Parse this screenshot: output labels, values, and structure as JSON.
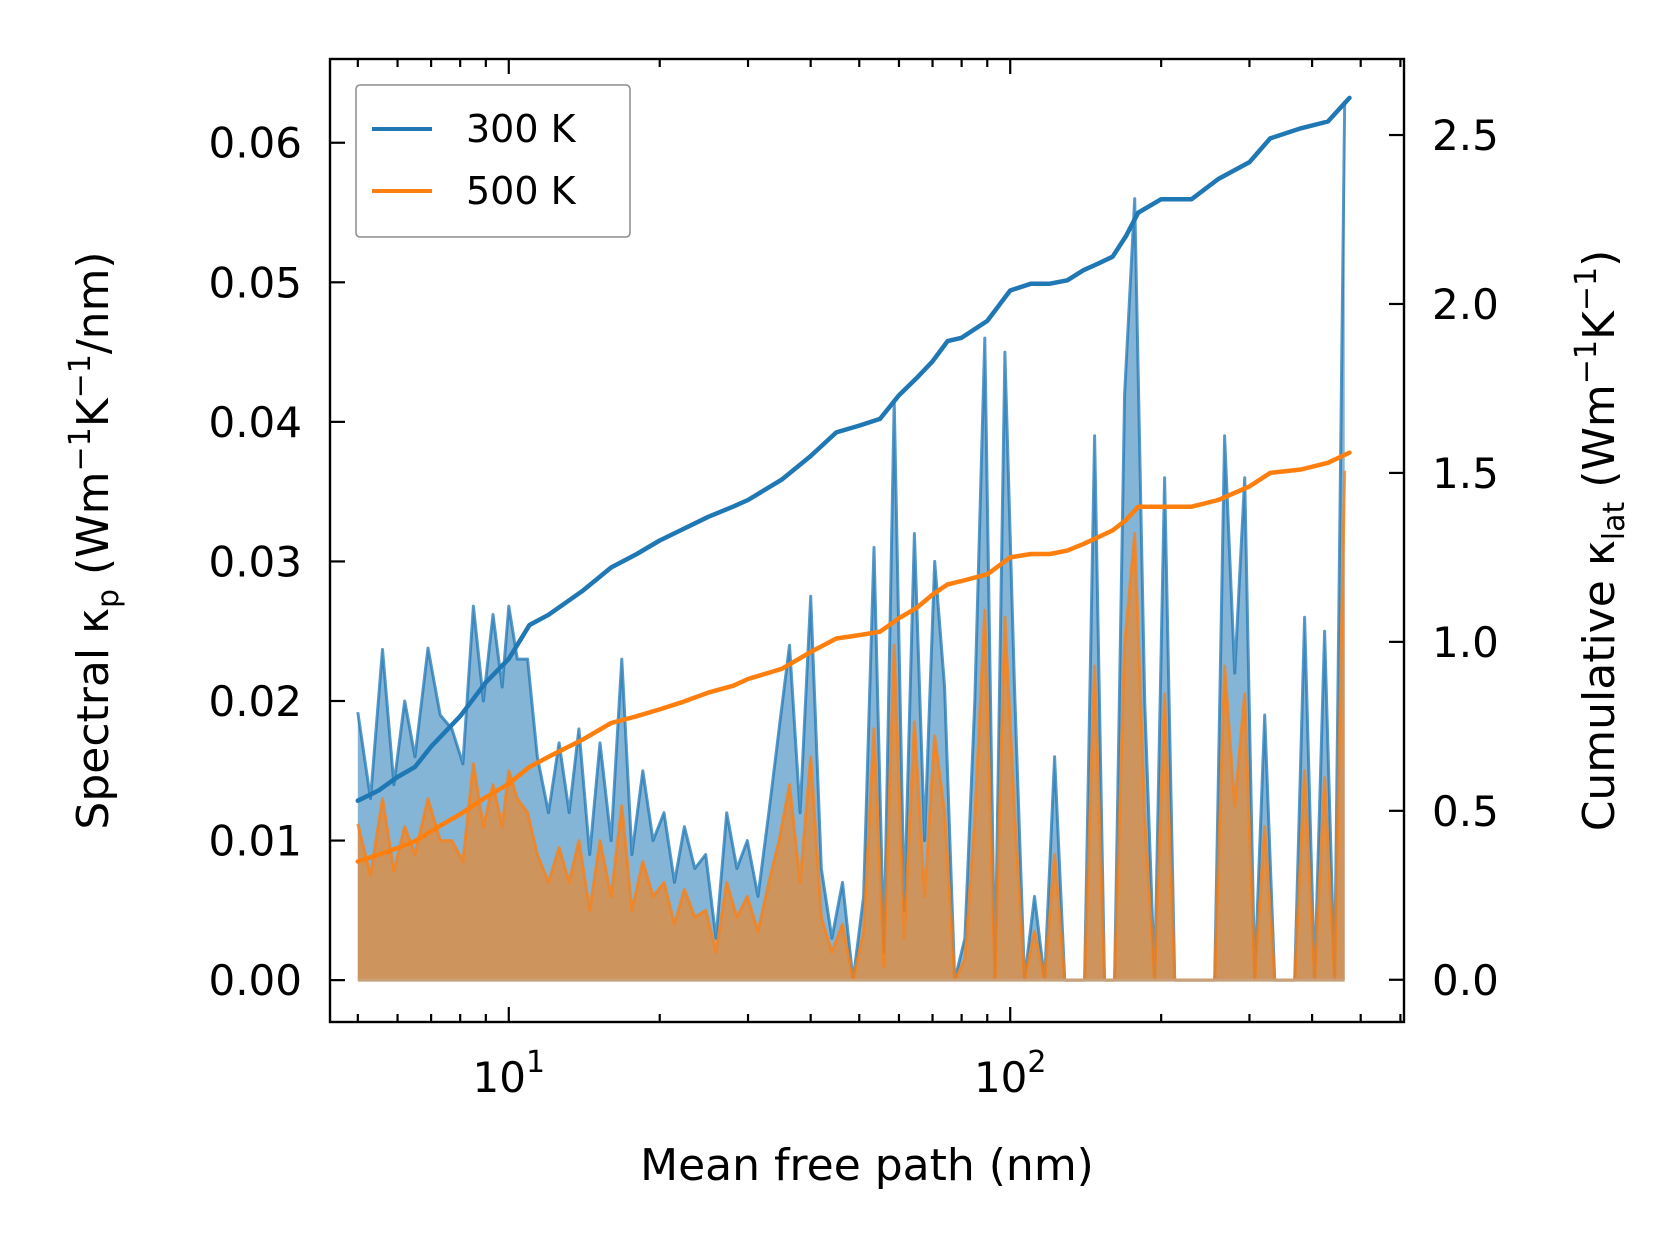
{
  "chart_data": {
    "type": "area",
    "title": "",
    "xlabel": "Mean free path (nm)",
    "xscale": "log",
    "xlim": [
      4.4,
      610
    ],
    "x_ticks": [
      {
        "value": 10,
        "base": "10",
        "exp": "1"
      },
      {
        "value": 100,
        "base": "10",
        "exp": "2"
      }
    ],
    "ylabel_left": {
      "main": "Spectral κ",
      "sub": "p",
      "unit_a": " (Wm",
      "exp_a": "−1",
      "unit_b": "K",
      "exp_b": "−1",
      "unit_c": "/nm)"
    },
    "ylim_left": [
      -0.003,
      0.066
    ],
    "yticks_left": [
      "0.00",
      "0.01",
      "0.02",
      "0.03",
      "0.04",
      "0.05",
      "0.06"
    ],
    "ylabel_right": {
      "main": "Cumulative κ",
      "sub": "lat",
      "unit_a": " (Wm",
      "exp_a": "−1",
      "unit_b": "K",
      "exp_b": "−1",
      "unit_c": ")"
    },
    "ylim_right": [
      -0.125,
      2.725
    ],
    "yticks_right": [
      "0.0",
      "0.5",
      "1.0",
      "1.5",
      "2.0",
      "2.5"
    ],
    "legend": {
      "position": "top-left",
      "entries": [
        {
          "label": "300 K",
          "color": "#1f77b4"
        },
        {
          "label": "500 K",
          "color": "#ff7f0e"
        }
      ]
    },
    "series": [
      {
        "name": "300 K",
        "color": "#1f77b4",
        "spectral": [
          [
            5.0,
            0.0192
          ],
          [
            5.3,
            0.013
          ],
          [
            5.6,
            0.0237
          ],
          [
            5.9,
            0.014
          ],
          [
            6.2,
            0.02
          ],
          [
            6.5,
            0.016
          ],
          [
            6.9,
            0.0238
          ],
          [
            7.3,
            0.019
          ],
          [
            7.7,
            0.018
          ],
          [
            8.1,
            0.0155
          ],
          [
            8.5,
            0.0268
          ],
          [
            8.9,
            0.02
          ],
          [
            9.3,
            0.0262
          ],
          [
            9.7,
            0.021
          ],
          [
            10.0,
            0.0268
          ],
          [
            10.4,
            0.023
          ],
          [
            10.9,
            0.023
          ],
          [
            11.4,
            0.016
          ],
          [
            12.0,
            0.012
          ],
          [
            12.6,
            0.017
          ],
          [
            13.2,
            0.012
          ],
          [
            13.8,
            0.018
          ],
          [
            14.5,
            0.009
          ],
          [
            15.2,
            0.017
          ],
          [
            16.0,
            0.01
          ],
          [
            16.8,
            0.023
          ],
          [
            17.6,
            0.009
          ],
          [
            18.5,
            0.015
          ],
          [
            19.4,
            0.01
          ],
          [
            20.4,
            0.012
          ],
          [
            21.4,
            0.007
          ],
          [
            22.4,
            0.011
          ],
          [
            23.5,
            0.008
          ],
          [
            24.7,
            0.009
          ],
          [
            25.9,
            0.003
          ],
          [
            27.2,
            0.012
          ],
          [
            28.5,
            0.008
          ],
          [
            29.9,
            0.01
          ],
          [
            31.4,
            0.006
          ],
          [
            33.0,
            0.012
          ],
          [
            34.6,
            0.018
          ],
          [
            36.3,
            0.024
          ],
          [
            38.1,
            0.012
          ],
          [
            40.0,
            0.0275
          ],
          [
            42.0,
            0.008
          ],
          [
            44.1,
            0.003
          ],
          [
            46.3,
            0.007
          ],
          [
            48.6,
            0.0
          ],
          [
            51.0,
            0.006
          ],
          [
            53.5,
            0.031
          ],
          [
            56.0,
            0.002
          ],
          [
            58.7,
            0.0415
          ],
          [
            61.5,
            0.005
          ],
          [
            64.4,
            0.032
          ],
          [
            67.5,
            0.01
          ],
          [
            70.7,
            0.03
          ],
          [
            74.0,
            0.021
          ],
          [
            77.5,
            0.0
          ],
          [
            81.2,
            0.003
          ],
          [
            85.0,
            0.02
          ],
          [
            89.0,
            0.046
          ],
          [
            93.2,
            0.0
          ],
          [
            97.6,
            0.045
          ],
          [
            102.0,
            0.021
          ],
          [
            106.8,
            0.0
          ],
          [
            111.8,
            0.006
          ],
          [
            117.1,
            0.0
          ],
          [
            122.6,
            0.016
          ],
          [
            128.4,
            0.0
          ],
          [
            134.4,
            0.0
          ],
          [
            140.7,
            0.0
          ],
          [
            147.3,
            0.039
          ],
          [
            154.2,
            0.0
          ],
          [
            161.5,
            0.0
          ],
          [
            169.1,
            0.042
          ],
          [
            177.1,
            0.056
          ],
          [
            185.4,
            0.02
          ],
          [
            194.1,
            0.0
          ],
          [
            203.2,
            0.036
          ],
          [
            212.8,
            0.0
          ],
          [
            222.8,
            0.0
          ],
          [
            233.3,
            0.0
          ],
          [
            244.2,
            0.0
          ],
          [
            255.7,
            0.0
          ],
          [
            267.7,
            0.039
          ],
          [
            280.3,
            0.022
          ],
          [
            293.5,
            0.036
          ],
          [
            307.3,
            0.0
          ],
          [
            321.7,
            0.019
          ],
          [
            336.8,
            0.0
          ],
          [
            352.6,
            0.0
          ],
          [
            369.2,
            0.0
          ],
          [
            386.5,
            0.026
          ],
          [
            404.7,
            0.0
          ],
          [
            423.7,
            0.025
          ],
          [
            443.6,
            0.0
          ],
          [
            464.5,
            0.063
          ]
        ],
        "cumulative": [
          [
            5.0,
            0.53
          ],
          [
            5.5,
            0.56
          ],
          [
            6.0,
            0.6
          ],
          [
            6.5,
            0.63
          ],
          [
            7.0,
            0.69
          ],
          [
            8.0,
            0.78
          ],
          [
            9.0,
            0.88
          ],
          [
            10.0,
            0.95
          ],
          [
            11.0,
            1.05
          ],
          [
            12.0,
            1.08
          ],
          [
            14.0,
            1.15
          ],
          [
            16.0,
            1.22
          ],
          [
            18.0,
            1.26
          ],
          [
            20.0,
            1.3
          ],
          [
            22.0,
            1.33
          ],
          [
            25.0,
            1.37
          ],
          [
            28.0,
            1.4
          ],
          [
            30.0,
            1.42
          ],
          [
            35.0,
            1.48
          ],
          [
            40.0,
            1.55
          ],
          [
            45.0,
            1.62
          ],
          [
            50.0,
            1.64
          ],
          [
            55.0,
            1.66
          ],
          [
            60.0,
            1.73
          ],
          [
            65.0,
            1.78
          ],
          [
            70.0,
            1.83
          ],
          [
            75.0,
            1.89
          ],
          [
            80.0,
            1.9
          ],
          [
            90.0,
            1.95
          ],
          [
            100.0,
            2.04
          ],
          [
            110.0,
            2.06
          ],
          [
            120.0,
            2.06
          ],
          [
            130.0,
            2.07
          ],
          [
            140.0,
            2.1
          ],
          [
            150.0,
            2.12
          ],
          [
            160.0,
            2.14
          ],
          [
            170.0,
            2.2
          ],
          [
            180.0,
            2.27
          ],
          [
            200.0,
            2.31
          ],
          [
            230.0,
            2.31
          ],
          [
            260.0,
            2.37
          ],
          [
            300.0,
            2.42
          ],
          [
            330.0,
            2.49
          ],
          [
            380.0,
            2.52
          ],
          [
            430.0,
            2.54
          ],
          [
            475.0,
            2.61
          ]
        ]
      },
      {
        "name": "500 K",
        "color": "#ff7f0e",
        "spectral": [
          [
            5.0,
            0.0112
          ],
          [
            5.3,
            0.0075
          ],
          [
            5.6,
            0.013
          ],
          [
            5.9,
            0.0078
          ],
          [
            6.2,
            0.011
          ],
          [
            6.5,
            0.009
          ],
          [
            6.9,
            0.013
          ],
          [
            7.3,
            0.01
          ],
          [
            7.7,
            0.01
          ],
          [
            8.1,
            0.0085
          ],
          [
            8.5,
            0.0155
          ],
          [
            8.9,
            0.011
          ],
          [
            9.3,
            0.014
          ],
          [
            9.7,
            0.011
          ],
          [
            10.0,
            0.015
          ],
          [
            10.4,
            0.013
          ],
          [
            10.9,
            0.012
          ],
          [
            11.4,
            0.009
          ],
          [
            12.0,
            0.007
          ],
          [
            12.6,
            0.0095
          ],
          [
            13.2,
            0.007
          ],
          [
            13.8,
            0.01
          ],
          [
            14.5,
            0.005
          ],
          [
            15.2,
            0.01
          ],
          [
            16.0,
            0.006
          ],
          [
            16.8,
            0.0125
          ],
          [
            17.6,
            0.005
          ],
          [
            18.5,
            0.0085
          ],
          [
            19.4,
            0.006
          ],
          [
            20.4,
            0.007
          ],
          [
            21.4,
            0.004
          ],
          [
            22.4,
            0.0065
          ],
          [
            23.5,
            0.0045
          ],
          [
            24.7,
            0.005
          ],
          [
            25.9,
            0.002
          ],
          [
            27.2,
            0.007
          ],
          [
            28.5,
            0.0045
          ],
          [
            29.9,
            0.006
          ],
          [
            31.4,
            0.0035
          ],
          [
            33.0,
            0.007
          ],
          [
            34.6,
            0.01
          ],
          [
            36.3,
            0.014
          ],
          [
            38.1,
            0.007
          ],
          [
            40.0,
            0.016
          ],
          [
            42.0,
            0.0045
          ],
          [
            44.1,
            0.002
          ],
          [
            46.3,
            0.004
          ],
          [
            48.6,
            0.0
          ],
          [
            51.0,
            0.0035
          ],
          [
            53.5,
            0.018
          ],
          [
            56.0,
            0.001
          ],
          [
            58.7,
            0.024
          ],
          [
            61.5,
            0.003
          ],
          [
            64.4,
            0.0185
          ],
          [
            67.5,
            0.006
          ],
          [
            70.7,
            0.0175
          ],
          [
            74.0,
            0.012
          ],
          [
            77.5,
            0.0
          ],
          [
            81.2,
            0.0015
          ],
          [
            85.0,
            0.0115
          ],
          [
            89.0,
            0.0265
          ],
          [
            93.2,
            0.0
          ],
          [
            97.6,
            0.026
          ],
          [
            102.0,
            0.012
          ],
          [
            106.8,
            0.0
          ],
          [
            111.8,
            0.0035
          ],
          [
            117.1,
            0.0
          ],
          [
            122.6,
            0.009
          ],
          [
            128.4,
            0.0
          ],
          [
            134.4,
            0.0
          ],
          [
            140.7,
            0.0
          ],
          [
            147.3,
            0.0225
          ],
          [
            154.2,
            0.0
          ],
          [
            161.5,
            0.0
          ],
          [
            169.1,
            0.024
          ],
          [
            177.1,
            0.032
          ],
          [
            185.4,
            0.0115
          ],
          [
            194.1,
            0.0
          ],
          [
            203.2,
            0.0205
          ],
          [
            212.8,
            0.0
          ],
          [
            222.8,
            0.0
          ],
          [
            233.3,
            0.0
          ],
          [
            244.2,
            0.0
          ],
          [
            255.7,
            0.0
          ],
          [
            267.7,
            0.0225
          ],
          [
            280.3,
            0.0125
          ],
          [
            293.5,
            0.0205
          ],
          [
            307.3,
            0.0
          ],
          [
            321.7,
            0.011
          ],
          [
            336.8,
            0.0
          ],
          [
            352.6,
            0.0
          ],
          [
            369.2,
            0.0
          ],
          [
            386.5,
            0.015
          ],
          [
            404.7,
            0.0
          ],
          [
            423.7,
            0.0145
          ],
          [
            443.6,
            0.0
          ],
          [
            464.5,
            0.0365
          ]
        ],
        "cumulative": [
          [
            5.0,
            0.35
          ],
          [
            5.5,
            0.37
          ],
          [
            6.0,
            0.39
          ],
          [
            6.5,
            0.41
          ],
          [
            7.0,
            0.44
          ],
          [
            8.0,
            0.49
          ],
          [
            9.0,
            0.54
          ],
          [
            10.0,
            0.58
          ],
          [
            11.0,
            0.63
          ],
          [
            12.0,
            0.66
          ],
          [
            14.0,
            0.71
          ],
          [
            16.0,
            0.76
          ],
          [
            18.0,
            0.78
          ],
          [
            20.0,
            0.8
          ],
          [
            22.0,
            0.82
          ],
          [
            25.0,
            0.85
          ],
          [
            28.0,
            0.87
          ],
          [
            30.0,
            0.89
          ],
          [
            35.0,
            0.92
          ],
          [
            40.0,
            0.97
          ],
          [
            45.0,
            1.01
          ],
          [
            50.0,
            1.02
          ],
          [
            55.0,
            1.03
          ],
          [
            60.0,
            1.07
          ],
          [
            65.0,
            1.1
          ],
          [
            70.0,
            1.14
          ],
          [
            75.0,
            1.17
          ],
          [
            80.0,
            1.18
          ],
          [
            90.0,
            1.2
          ],
          [
            100.0,
            1.25
          ],
          [
            110.0,
            1.26
          ],
          [
            120.0,
            1.26
          ],
          [
            130.0,
            1.27
          ],
          [
            140.0,
            1.29
          ],
          [
            150.0,
            1.31
          ],
          [
            160.0,
            1.33
          ],
          [
            170.0,
            1.36
          ],
          [
            180.0,
            1.4
          ],
          [
            200.0,
            1.4
          ],
          [
            230.0,
            1.4
          ],
          [
            260.0,
            1.42
          ],
          [
            300.0,
            1.46
          ],
          [
            330.0,
            1.5
          ],
          [
            380.0,
            1.51
          ],
          [
            430.0,
            1.53
          ],
          [
            475.0,
            1.56
          ]
        ]
      }
    ]
  }
}
